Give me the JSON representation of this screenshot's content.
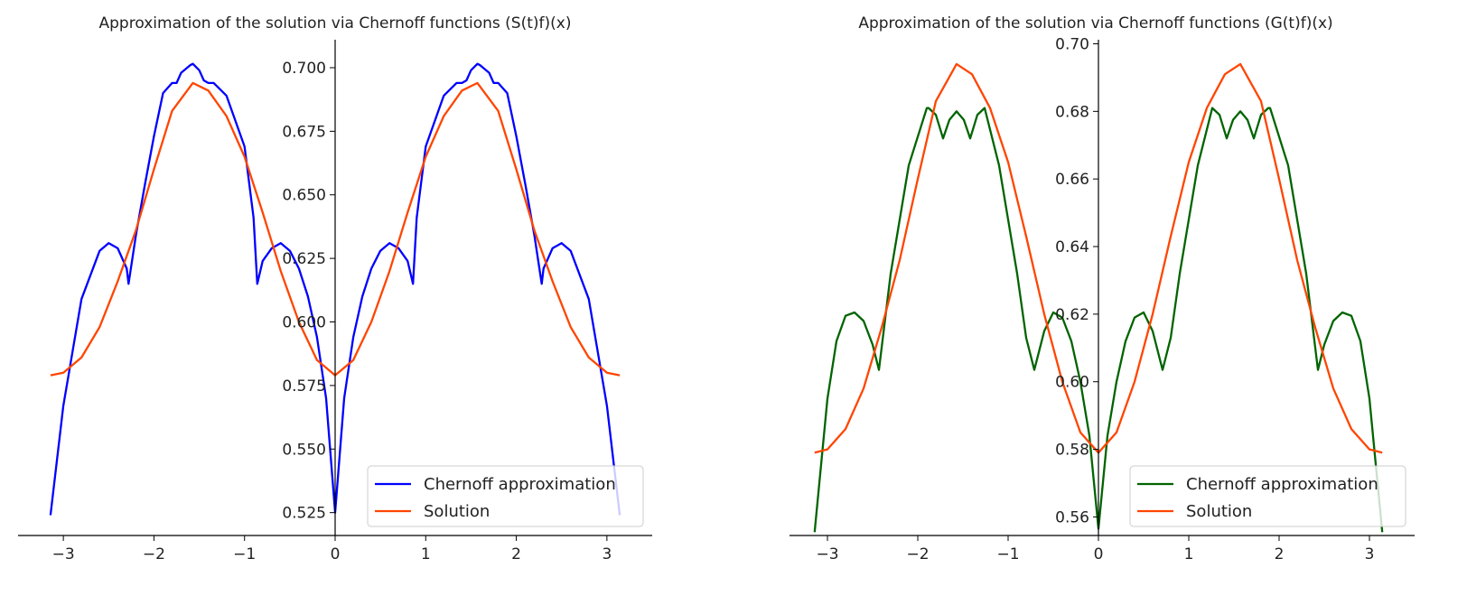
{
  "chart_data": [
    {
      "type": "line",
      "title": "Approximation of the solution via Chernoff functions (S(t)f)(x)",
      "xlabel": "",
      "ylabel": "",
      "xlim": [
        -3.5,
        3.5
      ],
      "ylim": [
        0.516,
        0.711
      ],
      "xticks": [
        -3,
        -2,
        -1,
        0,
        1,
        2,
        3
      ],
      "yticks": [
        0.525,
        0.55,
        0.575,
        0.6,
        0.625,
        0.65,
        0.675,
        0.7
      ],
      "ytick_labels": [
        "0.525",
        "0.550",
        "0.575",
        "0.600",
        "0.625",
        "0.650",
        "0.675",
        "0.700"
      ],
      "grid": false,
      "legend_position": "lower-right",
      "series": [
        {
          "name": "Chernoff approximation",
          "color": "#0000ff",
          "x": [
            -3.1416,
            -3.0,
            -2.8,
            -2.6,
            -2.5,
            -2.4,
            -2.3,
            -2.28,
            -2.2,
            -2.1,
            -2.0,
            -1.9,
            -1.8,
            -1.75,
            -1.7,
            -1.6,
            -1.5704,
            -1.5,
            -1.45,
            -1.4,
            -1.34,
            -1.2,
            -1.0,
            -0.9,
            -0.86,
            -0.8,
            -0.7,
            -0.6,
            -0.5,
            -0.4,
            -0.3,
            -0.2,
            -0.1,
            0.0,
            0.1,
            0.2,
            0.3,
            0.4,
            0.5,
            0.6,
            0.7,
            0.8,
            0.86,
            0.9,
            1.0,
            1.2,
            1.34,
            1.4,
            1.45,
            1.5,
            1.5704,
            1.6,
            1.7,
            1.75,
            1.8,
            1.9,
            2.0,
            2.1,
            2.2,
            2.28,
            2.3,
            2.4,
            2.5,
            2.6,
            2.8,
            3.0,
            3.1416
          ],
          "y": [
            0.524,
            0.567,
            0.609,
            0.628,
            0.631,
            0.629,
            0.621,
            0.615,
            0.634,
            0.654,
            0.673,
            0.69,
            0.694,
            0.694,
            0.698,
            0.701,
            0.7015,
            0.699,
            0.695,
            0.694,
            0.694,
            0.689,
            0.669,
            0.641,
            0.615,
            0.624,
            0.629,
            0.631,
            0.628,
            0.621,
            0.61,
            0.594,
            0.57,
            0.525,
            0.57,
            0.594,
            0.61,
            0.621,
            0.628,
            0.631,
            0.629,
            0.624,
            0.615,
            0.641,
            0.669,
            0.689,
            0.694,
            0.694,
            0.695,
            0.699,
            0.7015,
            0.701,
            0.698,
            0.694,
            0.694,
            0.69,
            0.673,
            0.654,
            0.634,
            0.615,
            0.621,
            0.629,
            0.631,
            0.628,
            0.609,
            0.567,
            0.524
          ]
        },
        {
          "name": "Solution",
          "color": "#ff4500",
          "x": [
            -3.1416,
            -3.0,
            -2.8,
            -2.6,
            -2.4,
            -2.2,
            -2.0,
            -1.8,
            -1.5708,
            -1.4,
            -1.2,
            -1.0,
            -0.8,
            -0.6,
            -0.4,
            -0.2,
            0.0,
            0.2,
            0.4,
            0.6,
            0.8,
            1.0,
            1.2,
            1.4,
            1.5708,
            1.8,
            2.0,
            2.2,
            2.4,
            2.6,
            2.8,
            3.0,
            3.1416
          ],
          "y": [
            0.579,
            0.58,
            0.586,
            0.598,
            0.616,
            0.636,
            0.66,
            0.683,
            0.694,
            0.691,
            0.681,
            0.665,
            0.643,
            0.62,
            0.6,
            0.585,
            0.579,
            0.585,
            0.6,
            0.62,
            0.643,
            0.665,
            0.681,
            0.691,
            0.694,
            0.683,
            0.66,
            0.636,
            0.616,
            0.598,
            0.586,
            0.58,
            0.579
          ]
        }
      ]
    },
    {
      "type": "line",
      "title": "Approximation of the solution via Chernoff functions (G(t)f)(x)",
      "xlabel": "",
      "ylabel": "",
      "xlim": [
        -3.5,
        3.5
      ],
      "ylim": [
        0.5545,
        0.7012
      ],
      "xticks": [
        -3,
        -2,
        -1,
        0,
        1,
        2,
        3
      ],
      "yticks": [
        0.56,
        0.58,
        0.6,
        0.62,
        0.64,
        0.66,
        0.68,
        0.7
      ],
      "ytick_labels": [
        "0.56",
        "0.58",
        "0.60",
        "0.62",
        "0.64",
        "0.66",
        "0.68",
        "0.70"
      ],
      "grid": false,
      "legend_position": "lower-right",
      "series": [
        {
          "name": "Chernoff approximation",
          "color": "#006400",
          "x": [
            -3.1416,
            -3.0,
            -2.9,
            -2.8,
            -2.7,
            -2.6,
            -2.5,
            -2.43,
            -2.3,
            -2.1,
            -1.9,
            -1.88,
            -1.8,
            -1.72,
            -1.65,
            -1.5708,
            -1.49,
            -1.42,
            -1.34,
            -1.26,
            -1.1,
            -0.9,
            -0.8,
            -0.71,
            -0.6,
            -0.5,
            -0.4,
            -0.3,
            -0.2,
            -0.1,
            0.0,
            0.1,
            0.2,
            0.3,
            0.4,
            0.5,
            0.6,
            0.71,
            0.8,
            0.9,
            1.1,
            1.26,
            1.34,
            1.42,
            1.49,
            1.5708,
            1.65,
            1.72,
            1.8,
            1.88,
            1.9,
            2.1,
            2.3,
            2.43,
            2.5,
            2.6,
            2.7,
            2.8,
            2.9,
            3.0,
            3.1416
          ],
          "y": [
            0.5555,
            0.595,
            0.612,
            0.6195,
            0.6205,
            0.618,
            0.611,
            0.6035,
            0.632,
            0.664,
            0.681,
            0.681,
            0.679,
            0.672,
            0.6775,
            0.68,
            0.6775,
            0.672,
            0.679,
            0.681,
            0.664,
            0.632,
            0.613,
            0.6035,
            0.615,
            0.6205,
            0.619,
            0.612,
            0.6,
            0.584,
            0.5565,
            0.584,
            0.6,
            0.612,
            0.619,
            0.6205,
            0.615,
            0.6035,
            0.613,
            0.632,
            0.664,
            0.681,
            0.679,
            0.672,
            0.6775,
            0.68,
            0.6775,
            0.672,
            0.679,
            0.681,
            0.681,
            0.664,
            0.632,
            0.6035,
            0.611,
            0.618,
            0.6205,
            0.6195,
            0.612,
            0.595,
            0.5555
          ]
        },
        {
          "name": "Solution",
          "color": "#ff4500",
          "x": [
            -3.1416,
            -3.0,
            -2.8,
            -2.6,
            -2.4,
            -2.2,
            -2.0,
            -1.8,
            -1.5708,
            -1.4,
            -1.2,
            -1.0,
            -0.8,
            -0.6,
            -0.4,
            -0.2,
            0.0,
            0.2,
            0.4,
            0.6,
            0.8,
            1.0,
            1.2,
            1.4,
            1.5708,
            1.8,
            2.0,
            2.2,
            2.4,
            2.6,
            2.8,
            3.0,
            3.1416
          ],
          "y": [
            0.579,
            0.58,
            0.586,
            0.598,
            0.616,
            0.636,
            0.66,
            0.683,
            0.694,
            0.691,
            0.681,
            0.665,
            0.643,
            0.62,
            0.6,
            0.585,
            0.579,
            0.585,
            0.6,
            0.62,
            0.643,
            0.665,
            0.681,
            0.691,
            0.694,
            0.683,
            0.66,
            0.636,
            0.616,
            0.598,
            0.586,
            0.58,
            0.579
          ]
        }
      ]
    }
  ]
}
